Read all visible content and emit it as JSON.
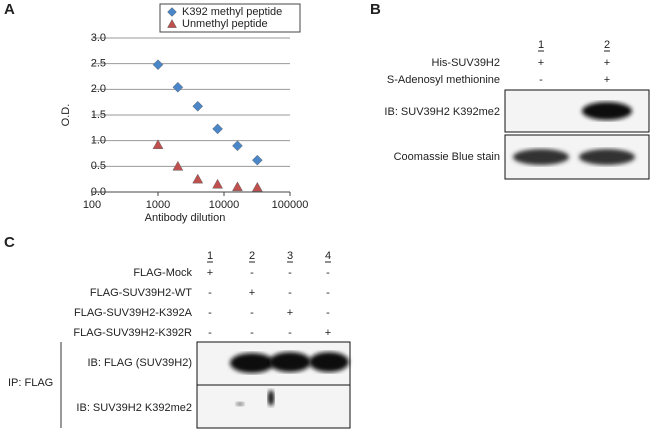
{
  "chart_data": {
    "type": "scatter",
    "x_label": "Antibody dilution",
    "y_label": "O.D.",
    "x": [
      1000,
      2000,
      4000,
      8000,
      16000,
      32000
    ],
    "series": [
      {
        "name": "K392 methyl peptide",
        "color": "#4a86c8",
        "marker": "diamond",
        "values": [
          2.48,
          2.04,
          1.67,
          1.23,
          0.9,
          0.62
        ]
      },
      {
        "name": "Unmethyl peptide",
        "color": "#c0504d",
        "marker": "triangle",
        "values": [
          0.92,
          0.5,
          0.25,
          0.15,
          0.1,
          0.09
        ]
      }
    ],
    "xscale": "log",
    "xlim": [
      100,
      100000
    ],
    "xticks": [
      100,
      1000,
      10000,
      100000
    ],
    "ylim": [
      0,
      3
    ],
    "yticks": [
      {
        "value": 0,
        "label": "0.0"
      },
      0.5,
      {
        "value": 1,
        "label": "1.0"
      },
      1.5,
      {
        "value": 2,
        "label": "2.0"
      },
      2.5,
      {
        "value": 3,
        "label": "3.0"
      }
    ],
    "grid": true,
    "legend": "top"
  },
  "panel_labels": [
    "A",
    "B",
    "C"
  ],
  "panel_b": {
    "lanes": [
      "1",
      "2"
    ],
    "rows": [
      {
        "label": "His-SUV39H2",
        "signs": [
          "+",
          "+"
        ]
      },
      {
        "label": "S-Adenosyl methionine",
        "signs": [
          "-",
          "+"
        ]
      }
    ],
    "blots": [
      "IB: SUV39H2 K392me2",
      "Coomassie Blue stain"
    ]
  },
  "panel_c": {
    "lanes": [
      "1",
      "2",
      "3",
      "4"
    ],
    "rows": [
      {
        "label": "FLAG-Mock",
        "signs": [
          "+",
          "-",
          "-",
          "-"
        ]
      },
      {
        "label": "FLAG-SUV39H2-WT",
        "signs": [
          "-",
          "+",
          "-",
          "-"
        ]
      },
      {
        "label": "FLAG-SUV39H2-K392A",
        "signs": [
          "-",
          "-",
          "+",
          "-"
        ]
      },
      {
        "label": "FLAG-SUV39H2-K392R",
        "signs": [
          "-",
          "-",
          "-",
          "+"
        ]
      }
    ],
    "ip_label": "IP: FLAG",
    "blots": [
      "IB: FLAG (SUV39H2)",
      "IB: SUV39H2 K392me2"
    ]
  }
}
